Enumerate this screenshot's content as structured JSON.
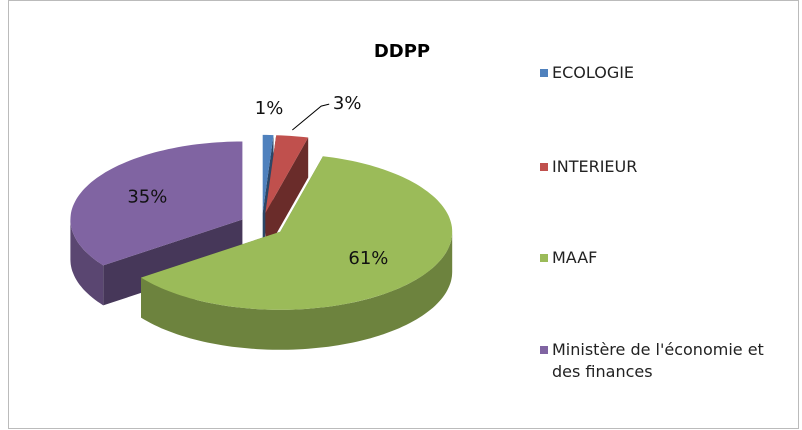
{
  "chart_data": {
    "type": "pie",
    "title": "DDPP",
    "categories": [
      "ECOLOGIE",
      "INTERIEUR",
      "MAAF",
      "Ministère de l'économie et des finances"
    ],
    "values": [
      1,
      3,
      61,
      35
    ],
    "value_labels": [
      "1%",
      "3%",
      "61%",
      "35%"
    ],
    "colors": [
      "#4f81bd",
      "#c0504d",
      "#9bbb59",
      "#8064a2"
    ],
    "legend": "right"
  }
}
